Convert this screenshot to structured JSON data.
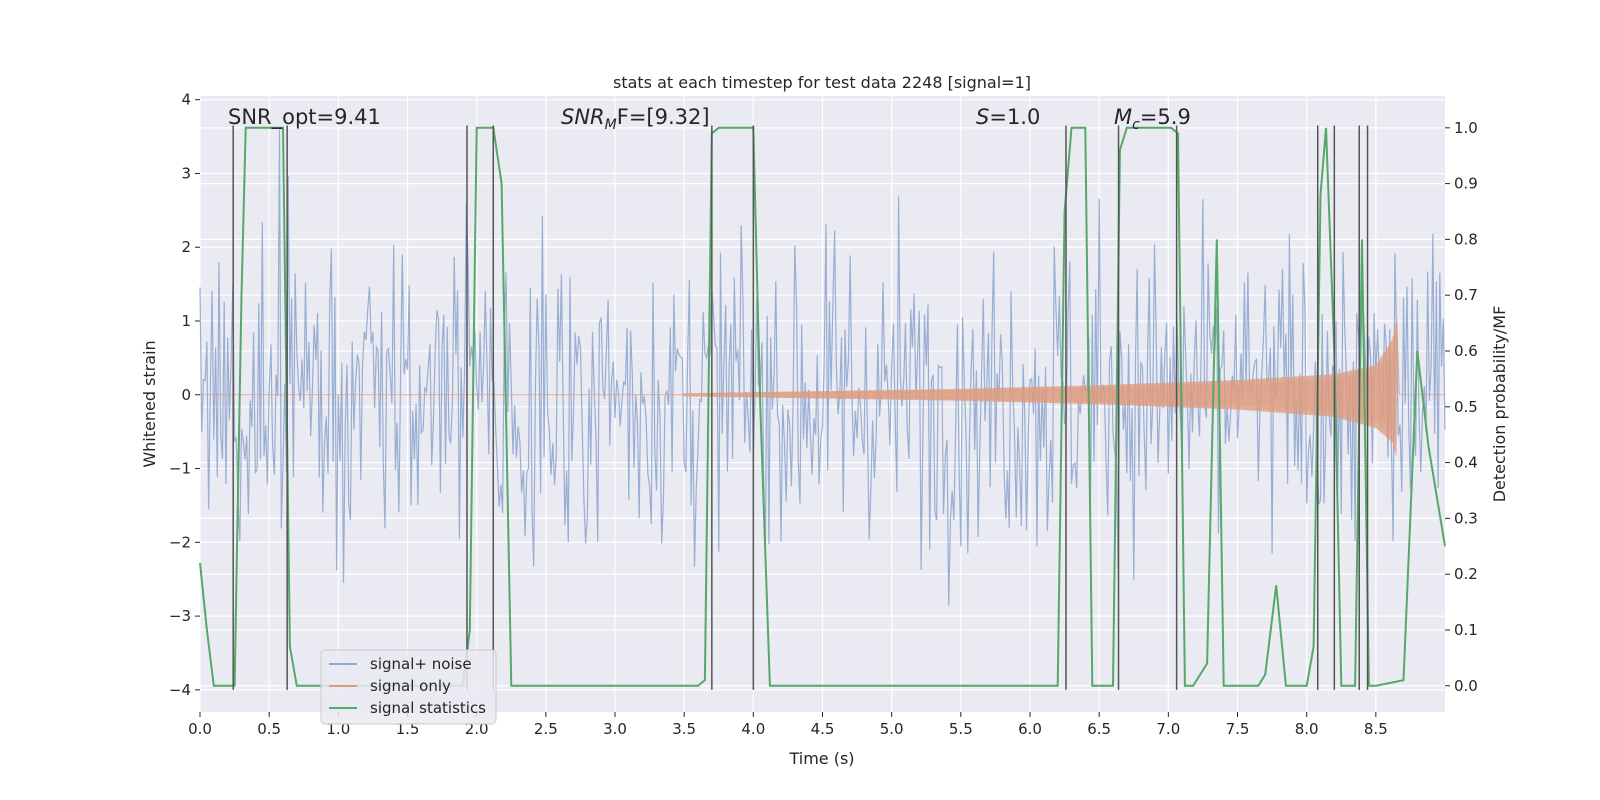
{
  "chart_data": {
    "type": "line",
    "title": "stats at each timestep for test data 2248 [signal=1]",
    "xlabel": "Time (s)",
    "ylabel_left": "Whitened strain",
    "ylabel_right": "Detection probability/MF",
    "xlim": [
      0,
      9.0
    ],
    "ylim_left": [
      -4.3,
      4.05
    ],
    "ylim_right": [
      -0.047,
      1.057
    ],
    "x_ticks": [
      0.0,
      0.5,
      1.0,
      1.5,
      2.0,
      2.5,
      3.0,
      3.5,
      4.0,
      4.5,
      5.0,
      5.5,
      6.0,
      6.5,
      7.0,
      7.5,
      8.0,
      8.5
    ],
    "x_tick_labels": [
      "0.0",
      "0.5",
      "1.0",
      "1.5",
      "2.0",
      "2.5",
      "3.0",
      "3.5",
      "4.0",
      "4.5",
      "5.0",
      "5.5",
      "6.0",
      "6.5",
      "7.0",
      "7.5",
      "8.0",
      "8.5"
    ],
    "y_left_ticks": [
      -4,
      -3,
      -2,
      -1,
      0,
      1,
      2,
      3,
      4
    ],
    "y_left_tick_labels": [
      "−4",
      "−3",
      "−2",
      "−1",
      "0",
      "1",
      "2",
      "3",
      "4"
    ],
    "y_right_ticks": [
      0.0,
      0.1,
      0.2,
      0.3,
      0.4,
      0.5,
      0.6,
      0.7,
      0.8,
      0.9,
      1.0
    ],
    "y_right_tick_labels": [
      "0.0",
      "0.1",
      "0.2",
      "0.3",
      "0.4",
      "0.5",
      "0.6",
      "0.7",
      "0.8",
      "0.9",
      "1.0"
    ],
    "grid": true,
    "annotations": [
      {
        "text": "SNR_opt=9.41",
        "x": 0.2,
        "y": 3.62
      },
      {
        "text_main": "SNR",
        "text_sub": "M",
        "text_rest": "F=[9.32]",
        "x": 2.6,
        "y": 3.62
      },
      {
        "text_main": "S",
        "text_sub": "",
        "text_rest": "=1.0",
        "x": 5.62,
        "y": 3.62
      },
      {
        "text_main": "M",
        "text_sub": "c",
        "text_rest": "=5.9",
        "x": 6.62,
        "y": 3.62
      }
    ],
    "legend": {
      "position": "lower-left",
      "entries": [
        "signal+ noise",
        "signal only",
        "signal statistics"
      ]
    },
    "series": [
      {
        "name": "signal+ noise",
        "axis": "left",
        "color": "#8fa7cf",
        "style": "noise",
        "sample_rate": 80,
        "duration": 9.0,
        "envelope_std": 1.05,
        "peak_range": [
          -3.6,
          3.6
        ]
      },
      {
        "name": "signal only",
        "axis": "left",
        "color": "#dd9a7d",
        "style": "chirp",
        "t_start": 3.5,
        "t_merger": 8.65,
        "amplitude_points": [
          [
            3.5,
            0.02
          ],
          [
            4.5,
            0.05
          ],
          [
            5.5,
            0.08
          ],
          [
            6.5,
            0.13
          ],
          [
            7.5,
            0.2
          ],
          [
            8.2,
            0.28
          ],
          [
            8.5,
            0.4
          ],
          [
            8.62,
            0.75
          ],
          [
            8.65,
            1.05
          ]
        ],
        "neg_amplitude_points": [
          [
            3.5,
            0.02
          ],
          [
            4.5,
            0.05
          ],
          [
            5.5,
            0.08
          ],
          [
            6.5,
            0.13
          ],
          [
            7.5,
            0.2
          ],
          [
            8.2,
            0.3
          ],
          [
            8.5,
            0.45
          ],
          [
            8.62,
            0.65
          ],
          [
            8.65,
            0.85
          ]
        ]
      },
      {
        "name": "signal statistics",
        "axis": "right",
        "color": "#55a868",
        "x": [
          0.0,
          0.05,
          0.1,
          0.25,
          0.3,
          0.33,
          0.6,
          0.65,
          0.7,
          0.75,
          1.9,
          1.95,
          2.0,
          2.05,
          2.12,
          2.18,
          2.25,
          3.6,
          3.65,
          3.7,
          3.75,
          4.0,
          4.05,
          4.12,
          6.2,
          6.25,
          6.3,
          6.4,
          6.45,
          6.5,
          6.6,
          6.65,
          6.7,
          7.02,
          7.07,
          7.12,
          7.18,
          7.28,
          7.35,
          7.4,
          7.6,
          7.65,
          7.7,
          7.78,
          7.85,
          8.0,
          8.05,
          8.1,
          8.14,
          8.2,
          8.25,
          8.35,
          8.4,
          8.45,
          8.5,
          8.7,
          8.8,
          8.88,
          9.0
        ],
        "y": [
          0.22,
          0.1,
          0.0,
          0.0,
          0.7,
          1.0,
          1.0,
          0.07,
          0.0,
          0.0,
          0.0,
          0.1,
          1.0,
          1.0,
          1.0,
          0.9,
          0.0,
          0.0,
          0.01,
          0.99,
          1.0,
          1.0,
          0.5,
          0.0,
          0.0,
          0.85,
          1.0,
          1.0,
          0.0,
          0.0,
          0.0,
          0.96,
          1.0,
          1.0,
          0.99,
          0.0,
          0.0,
          0.04,
          0.8,
          0.0,
          0.0,
          0.0,
          0.02,
          0.18,
          0.0,
          0.0,
          0.07,
          0.88,
          1.0,
          0.6,
          0.0,
          0.0,
          0.8,
          0.0,
          0.0,
          0.01,
          0.6,
          0.43,
          0.25
        ]
      }
    ],
    "vertical_markers": {
      "color": "#555555",
      "y_range": [
        -4.0,
        3.65
      ],
      "x": [
        0.24,
        0.63,
        1.93,
        2.12,
        3.7,
        4.0,
        6.26,
        6.64,
        7.06,
        8.08,
        8.2,
        8.38,
        8.44
      ]
    }
  }
}
